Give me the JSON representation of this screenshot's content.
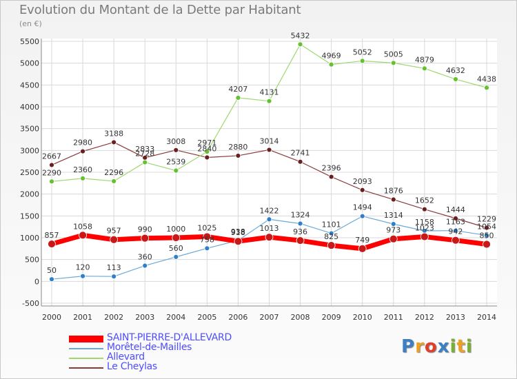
{
  "title": "Evolution du Montant de la Dette par Habitant",
  "unit_label": "(en €)",
  "logo": {
    "letters": [
      "P",
      "r",
      "o",
      "x",
      "i",
      "t",
      "i"
    ],
    "colors": [
      "#3b7fc4",
      "#f0a020",
      "#e0402a",
      "#3b7fc4",
      "#7ab030",
      "#f0a020",
      "#7ab030"
    ]
  },
  "chart_data": {
    "type": "line",
    "x": [
      "2000",
      "2001",
      "2002",
      "2003",
      "2004",
      "2005",
      "2006",
      "2007",
      "2008",
      "2009",
      "2010",
      "2011",
      "2012",
      "2013",
      "2014"
    ],
    "ylim": [
      -500,
      5500
    ],
    "yticks": [
      "-500",
      "0",
      "500",
      "1000",
      "1500",
      "2000",
      "2500",
      "3000",
      "3500",
      "4000",
      "4500",
      "5000",
      "5500"
    ],
    "grid": true,
    "legend_position": "bottom-left",
    "series": [
      {
        "name": "SAINT-PIERRE-D'ALLEVARD",
        "color": "#ff0000",
        "point_color": "#c81818",
        "width": 7,
        "values": [
          857,
          1058,
          957,
          990,
          1000,
          1025,
          918,
          1013,
          936,
          825,
          749,
          973,
          1023,
          942,
          850
        ],
        "labels": [
          "857",
          "1058",
          "957",
          "990",
          "1000",
          "1025",
          "918",
          "1013",
          "936",
          "825",
          "749",
          "973",
          "1023",
          "942",
          "850"
        ]
      },
      {
        "name": "Morêtel-de-Mailles",
        "color": "#6aaad8",
        "point_color": "#2f80c8",
        "width": 1.2,
        "values": [
          50,
          120,
          113,
          360,
          560,
          758,
          938,
          1422,
          1324,
          1101,
          1494,
          1314,
          1158,
          1163,
          1054
        ],
        "labels": [
          "50",
          "120",
          "113",
          "360",
          "560",
          "758",
          "938",
          "1422",
          "1324",
          "1101",
          "1494",
          "1314",
          "1158",
          "1163",
          "1054"
        ]
      },
      {
        "name": "Allevard",
        "color": "#9ed870",
        "point_color": "#66c030",
        "width": 1.2,
        "values": [
          2290,
          2360,
          2296,
          2728,
          2539,
          2971,
          4207,
          4131,
          5432,
          4969,
          5052,
          5005,
          4879,
          4632,
          4438
        ],
        "labels": [
          "2290",
          "2360",
          "2296",
          "2728",
          "2539",
          "2971",
          "4207",
          "4131",
          "5432",
          "4969",
          "5052",
          "5005",
          "4879",
          "4632",
          "4438"
        ]
      },
      {
        "name": "Le Cheylas",
        "color": "#8a3a3a",
        "point_color": "#6a1f1f",
        "width": 1.2,
        "values": [
          2667,
          2980,
          3188,
          2833,
          3008,
          2840,
          2880,
          3014,
          2741,
          2396,
          2093,
          1876,
          1652,
          1444,
          1229
        ],
        "labels": [
          "2667",
          "2980",
          "3188",
          "2833",
          "3008",
          "2840",
          "2880",
          "3014",
          "2741",
          "2396",
          "2093",
          "1876",
          "1652",
          "1444",
          "1229"
        ]
      }
    ]
  }
}
